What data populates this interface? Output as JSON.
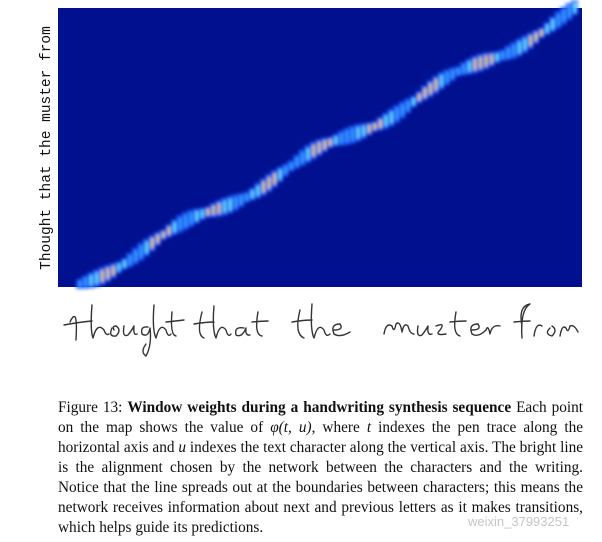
{
  "figure": {
    "y_axis_label": "Thought that the muster from",
    "caption": {
      "label": "Figure 13:",
      "title": "Window weights during a handwriting synthesis sequence",
      "body": [
        "Each point on the map shows the value of ",
        "φ(t, u)",
        ", where ",
        "t",
        " indexes the pen trace along the horizontal axis and ",
        "u",
        " indexes the text character along the vertical axis. The bright line is the alignment chosen by the network between the characters and the writing. Notice that the line spreads out at the boundaries between characters; this means the network receives information about next and previous letters as it makes transitions, which helps guide its predictions."
      ]
    },
    "watermark": "weixin_37993251"
  }
}
